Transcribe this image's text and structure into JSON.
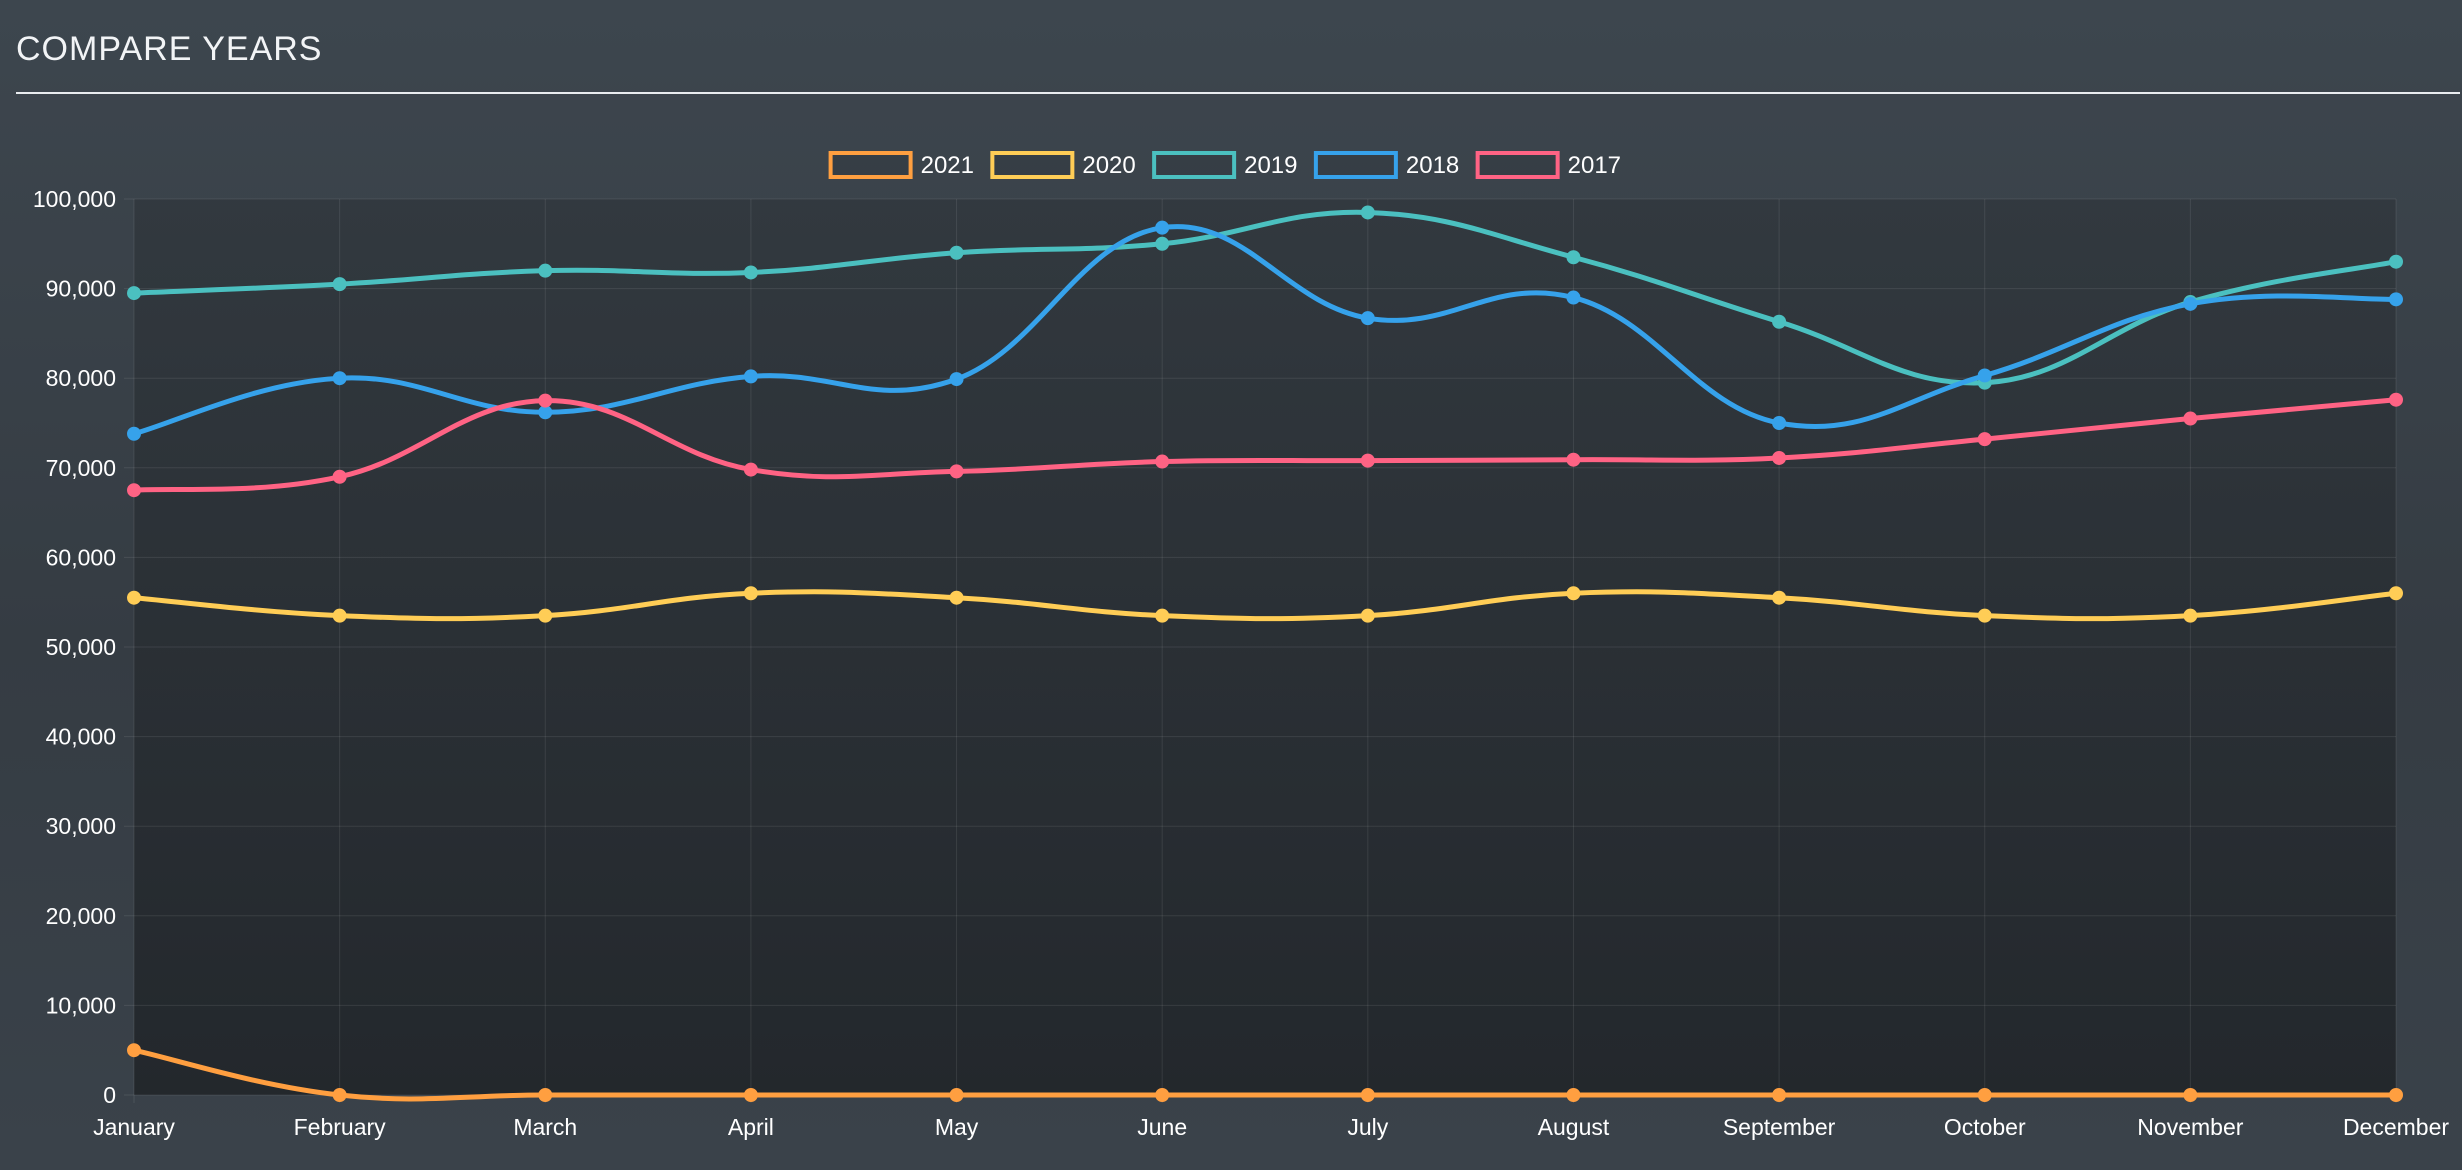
{
  "panel": {
    "title": "COMPARE YEARS"
  },
  "chart_data": {
    "type": "line",
    "title": "",
    "xlabel": "",
    "ylabel": "",
    "ylim": [
      0,
      100000
    ],
    "y_ticks": [
      0,
      10000,
      20000,
      30000,
      40000,
      50000,
      60000,
      70000,
      80000,
      90000,
      100000
    ],
    "y_tick_labels": [
      "0",
      "10,000",
      "20,000",
      "30,000",
      "40,000",
      "50,000",
      "60,000",
      "70,000",
      "80,000",
      "90,000",
      "100,000"
    ],
    "grid": true,
    "legend_position": "top-center",
    "categories": [
      "January",
      "February",
      "March",
      "April",
      "May",
      "June",
      "July",
      "August",
      "September",
      "October",
      "November",
      "December"
    ],
    "series": [
      {
        "name": "2021",
        "color": "#ff9f40",
        "values": [
          5000,
          0,
          0,
          0,
          0,
          0,
          0,
          0,
          0,
          0,
          0,
          0
        ]
      },
      {
        "name": "2020",
        "color": "#ffcd56",
        "values": [
          55500,
          53500,
          53500,
          56000,
          55500,
          53500,
          53500,
          56000,
          55500,
          53500,
          53500,
          56000
        ]
      },
      {
        "name": "2019",
        "color": "#4bc0c0",
        "values": [
          89500,
          90500,
          92000,
          91800,
          94000,
          95000,
          98500,
          93500,
          86300,
          79500,
          88500,
          93000
        ]
      },
      {
        "name": "2018",
        "color": "#36a2eb",
        "values": [
          73800,
          80000,
          76200,
          80200,
          79900,
          96800,
          86700,
          89000,
          75000,
          80300,
          88300,
          88800
        ]
      },
      {
        "name": "2017",
        "color": "#ff6384",
        "values": [
          67500,
          69000,
          77500,
          69800,
          69600,
          70700,
          70800,
          70900,
          71100,
          73200,
          75500,
          77600
        ]
      }
    ]
  }
}
